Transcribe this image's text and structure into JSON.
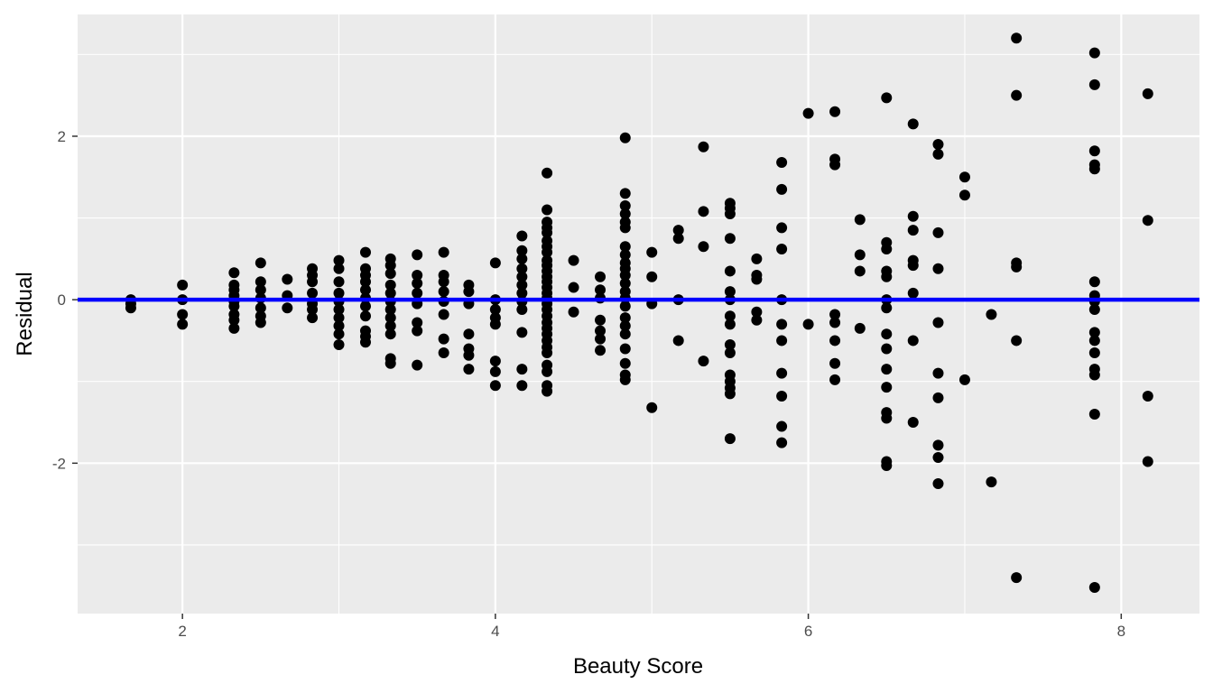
{
  "chart_data": {
    "type": "scatter",
    "title": "",
    "xlabel": "Beauty Score",
    "ylabel": "Residual",
    "xlim": [
      1.33,
      8.5
    ],
    "ylim": [
      -3.84,
      3.49
    ],
    "x_ticks": [
      2,
      4,
      6,
      8
    ],
    "y_ticks": [
      -2,
      0,
      2
    ],
    "x_tick_labels": [
      "2",
      "4",
      "6",
      "8"
    ],
    "y_tick_labels": [
      "-2",
      "0",
      "2"
    ],
    "grid": true,
    "reference_line": {
      "y": 0,
      "color": "#0000ff"
    },
    "colors": {
      "panel": "#ebebeb",
      "grid": "#ffffff",
      "points": "#000000"
    },
    "points": [
      {
        "x": 1.67,
        "y": 0.0
      },
      {
        "x": 1.67,
        "y": -0.05
      },
      {
        "x": 1.67,
        "y": -0.1
      },
      {
        "x": 2.0,
        "y": 0.18
      },
      {
        "x": 2.0,
        "y": 0.0
      },
      {
        "x": 2.0,
        "y": -0.18
      },
      {
        "x": 2.0,
        "y": -0.3
      },
      {
        "x": 2.33,
        "y": 0.33
      },
      {
        "x": 2.33,
        "y": 0.18
      },
      {
        "x": 2.33,
        "y": 0.12
      },
      {
        "x": 2.33,
        "y": 0.05
      },
      {
        "x": 2.33,
        "y": -0.02
      },
      {
        "x": 2.33,
        "y": -0.08
      },
      {
        "x": 2.33,
        "y": -0.18
      },
      {
        "x": 2.33,
        "y": -0.25
      },
      {
        "x": 2.33,
        "y": -0.35
      },
      {
        "x": 2.5,
        "y": 0.45
      },
      {
        "x": 2.5,
        "y": 0.22
      },
      {
        "x": 2.5,
        "y": 0.12
      },
      {
        "x": 2.5,
        "y": 0.02
      },
      {
        "x": 2.5,
        "y": -0.1
      },
      {
        "x": 2.5,
        "y": -0.2
      },
      {
        "x": 2.5,
        "y": -0.28
      },
      {
        "x": 2.67,
        "y": 0.25
      },
      {
        "x": 2.67,
        "y": 0.05
      },
      {
        "x": 2.67,
        "y": -0.1
      },
      {
        "x": 2.83,
        "y": 0.38
      },
      {
        "x": 2.83,
        "y": 0.3
      },
      {
        "x": 2.83,
        "y": 0.22
      },
      {
        "x": 2.83,
        "y": 0.08
      },
      {
        "x": 2.83,
        "y": -0.05
      },
      {
        "x": 2.83,
        "y": -0.12
      },
      {
        "x": 2.83,
        "y": -0.22
      },
      {
        "x": 3.0,
        "y": 0.48
      },
      {
        "x": 3.0,
        "y": 0.38
      },
      {
        "x": 3.0,
        "y": 0.22
      },
      {
        "x": 3.0,
        "y": 0.08
      },
      {
        "x": 3.0,
        "y": -0.02
      },
      {
        "x": 3.0,
        "y": -0.12
      },
      {
        "x": 3.0,
        "y": -0.22
      },
      {
        "x": 3.0,
        "y": -0.32
      },
      {
        "x": 3.0,
        "y": -0.42
      },
      {
        "x": 3.0,
        "y": -0.55
      },
      {
        "x": 3.17,
        "y": 0.58
      },
      {
        "x": 3.17,
        "y": 0.38
      },
      {
        "x": 3.17,
        "y": 0.3
      },
      {
        "x": 3.17,
        "y": 0.22
      },
      {
        "x": 3.17,
        "y": 0.12
      },
      {
        "x": 3.17,
        "y": 0.02
      },
      {
        "x": 3.17,
        "y": -0.08
      },
      {
        "x": 3.17,
        "y": -0.2
      },
      {
        "x": 3.17,
        "y": -0.38
      },
      {
        "x": 3.17,
        "y": -0.45
      },
      {
        "x": 3.17,
        "y": -0.52
      },
      {
        "x": 3.33,
        "y": 0.5
      },
      {
        "x": 3.33,
        "y": 0.42
      },
      {
        "x": 3.33,
        "y": 0.32
      },
      {
        "x": 3.33,
        "y": 0.18
      },
      {
        "x": 3.33,
        "y": 0.08
      },
      {
        "x": 3.33,
        "y": -0.02
      },
      {
        "x": 3.33,
        "y": -0.12
      },
      {
        "x": 3.33,
        "y": -0.22
      },
      {
        "x": 3.33,
        "y": -0.32
      },
      {
        "x": 3.33,
        "y": -0.42
      },
      {
        "x": 3.33,
        "y": -0.72
      },
      {
        "x": 3.33,
        "y": -0.78
      },
      {
        "x": 3.5,
        "y": 0.55
      },
      {
        "x": 3.5,
        "y": 0.3
      },
      {
        "x": 3.5,
        "y": 0.2
      },
      {
        "x": 3.5,
        "y": 0.08
      },
      {
        "x": 3.5,
        "y": -0.05
      },
      {
        "x": 3.5,
        "y": -0.28
      },
      {
        "x": 3.5,
        "y": -0.38
      },
      {
        "x": 3.5,
        "y": -0.8
      },
      {
        "x": 3.67,
        "y": 0.58
      },
      {
        "x": 3.67,
        "y": 0.3
      },
      {
        "x": 3.67,
        "y": 0.22
      },
      {
        "x": 3.67,
        "y": 0.1
      },
      {
        "x": 3.67,
        "y": -0.02
      },
      {
        "x": 3.67,
        "y": -0.18
      },
      {
        "x": 3.67,
        "y": -0.48
      },
      {
        "x": 3.67,
        "y": -0.65
      },
      {
        "x": 3.83,
        "y": 0.18
      },
      {
        "x": 3.83,
        "y": 0.1
      },
      {
        "x": 3.83,
        "y": -0.05
      },
      {
        "x": 3.83,
        "y": -0.42
      },
      {
        "x": 3.83,
        "y": -0.6
      },
      {
        "x": 3.83,
        "y": -0.68
      },
      {
        "x": 3.83,
        "y": -0.85
      },
      {
        "x": 4.0,
        "y": 0.45
      },
      {
        "x": 4.0,
        "y": 0.0
      },
      {
        "x": 4.0,
        "y": -0.12
      },
      {
        "x": 4.0,
        "y": -0.22
      },
      {
        "x": 4.0,
        "y": -0.3
      },
      {
        "x": 4.0,
        "y": -0.75
      },
      {
        "x": 4.0,
        "y": -0.88
      },
      {
        "x": 4.0,
        "y": -1.05
      },
      {
        "x": 4.17,
        "y": 0.78
      },
      {
        "x": 4.17,
        "y": 0.6
      },
      {
        "x": 4.17,
        "y": 0.5
      },
      {
        "x": 4.17,
        "y": 0.38
      },
      {
        "x": 4.17,
        "y": 0.28
      },
      {
        "x": 4.17,
        "y": 0.18
      },
      {
        "x": 4.17,
        "y": 0.08
      },
      {
        "x": 4.17,
        "y": -0.02
      },
      {
        "x": 4.17,
        "y": -0.12
      },
      {
        "x": 4.17,
        "y": -0.4
      },
      {
        "x": 4.17,
        "y": -0.85
      },
      {
        "x": 4.17,
        "y": -1.05
      },
      {
        "x": 4.33,
        "y": 1.55
      },
      {
        "x": 4.33,
        "y": 1.1
      },
      {
        "x": 4.33,
        "y": 0.95
      },
      {
        "x": 4.33,
        "y": 0.88
      },
      {
        "x": 4.33,
        "y": 0.82
      },
      {
        "x": 4.33,
        "y": 0.72
      },
      {
        "x": 4.33,
        "y": 0.65
      },
      {
        "x": 4.33,
        "y": 0.58
      },
      {
        "x": 4.33,
        "y": 0.48
      },
      {
        "x": 4.33,
        "y": 0.42
      },
      {
        "x": 4.33,
        "y": 0.35
      },
      {
        "x": 4.33,
        "y": 0.28
      },
      {
        "x": 4.33,
        "y": 0.22
      },
      {
        "x": 4.33,
        "y": 0.15
      },
      {
        "x": 4.33,
        "y": 0.08
      },
      {
        "x": 4.33,
        "y": 0.02
      },
      {
        "x": 4.33,
        "y": -0.05
      },
      {
        "x": 4.33,
        "y": -0.12
      },
      {
        "x": 4.33,
        "y": -0.2
      },
      {
        "x": 4.33,
        "y": -0.28
      },
      {
        "x": 4.33,
        "y": -0.35
      },
      {
        "x": 4.33,
        "y": -0.42
      },
      {
        "x": 4.33,
        "y": -0.5
      },
      {
        "x": 4.33,
        "y": -0.58
      },
      {
        "x": 4.33,
        "y": -0.65
      },
      {
        "x": 4.33,
        "y": -0.8
      },
      {
        "x": 4.33,
        "y": -0.88
      },
      {
        "x": 4.33,
        "y": -1.05
      },
      {
        "x": 4.33,
        "y": -1.12
      },
      {
        "x": 4.5,
        "y": 0.48
      },
      {
        "x": 4.5,
        "y": 0.15
      },
      {
        "x": 4.5,
        "y": -0.15
      },
      {
        "x": 4.67,
        "y": 0.28
      },
      {
        "x": 4.67,
        "y": 0.12
      },
      {
        "x": 4.67,
        "y": 0.02
      },
      {
        "x": 4.67,
        "y": -0.25
      },
      {
        "x": 4.67,
        "y": -0.38
      },
      {
        "x": 4.67,
        "y": -0.48
      },
      {
        "x": 4.67,
        "y": -0.62
      },
      {
        "x": 4.83,
        "y": 1.98
      },
      {
        "x": 4.83,
        "y": 1.3
      },
      {
        "x": 4.83,
        "y": 1.15
      },
      {
        "x": 4.83,
        "y": 1.05
      },
      {
        "x": 4.83,
        "y": 0.95
      },
      {
        "x": 4.83,
        "y": 0.88
      },
      {
        "x": 4.83,
        "y": 0.65
      },
      {
        "x": 4.83,
        "y": 0.55
      },
      {
        "x": 4.83,
        "y": 0.45
      },
      {
        "x": 4.83,
        "y": 0.38
      },
      {
        "x": 4.83,
        "y": 0.3
      },
      {
        "x": 4.83,
        "y": 0.2
      },
      {
        "x": 4.83,
        "y": 0.1
      },
      {
        "x": 4.83,
        "y": 0.02
      },
      {
        "x": 4.83,
        "y": -0.08
      },
      {
        "x": 4.83,
        "y": -0.22
      },
      {
        "x": 4.83,
        "y": -0.32
      },
      {
        "x": 4.83,
        "y": -0.42
      },
      {
        "x": 4.83,
        "y": -0.6
      },
      {
        "x": 4.83,
        "y": -0.78
      },
      {
        "x": 4.83,
        "y": -0.92
      },
      {
        "x": 4.83,
        "y": -0.98
      },
      {
        "x": 5.0,
        "y": 0.58
      },
      {
        "x": 5.0,
        "y": 0.28
      },
      {
        "x": 5.0,
        "y": -0.05
      },
      {
        "x": 5.0,
        "y": -1.32
      },
      {
        "x": 5.17,
        "y": 0.85
      },
      {
        "x": 5.17,
        "y": 0.75
      },
      {
        "x": 5.17,
        "y": 0.0
      },
      {
        "x": 5.17,
        "y": -0.5
      },
      {
        "x": 5.33,
        "y": 1.87
      },
      {
        "x": 5.33,
        "y": 1.08
      },
      {
        "x": 5.33,
        "y": 0.65
      },
      {
        "x": 5.33,
        "y": -0.75
      },
      {
        "x": 5.5,
        "y": 1.18
      },
      {
        "x": 5.5,
        "y": 1.12
      },
      {
        "x": 5.5,
        "y": 1.05
      },
      {
        "x": 5.5,
        "y": 0.75
      },
      {
        "x": 5.5,
        "y": 0.35
      },
      {
        "x": 5.5,
        "y": 0.1
      },
      {
        "x": 5.5,
        "y": 0.0
      },
      {
        "x": 5.5,
        "y": -0.2
      },
      {
        "x": 5.5,
        "y": -0.3
      },
      {
        "x": 5.5,
        "y": -0.55
      },
      {
        "x": 5.5,
        "y": -0.65
      },
      {
        "x": 5.5,
        "y": -0.92
      },
      {
        "x": 5.5,
        "y": -1.0
      },
      {
        "x": 5.5,
        "y": -1.08
      },
      {
        "x": 5.5,
        "y": -1.15
      },
      {
        "x": 5.5,
        "y": -1.7
      },
      {
        "x": 5.67,
        "y": 0.5
      },
      {
        "x": 5.67,
        "y": 0.3
      },
      {
        "x": 5.67,
        "y": 0.25
      },
      {
        "x": 5.67,
        "y": -0.15
      },
      {
        "x": 5.67,
        "y": -0.25
      },
      {
        "x": 5.83,
        "y": 1.68
      },
      {
        "x": 5.83,
        "y": 1.35
      },
      {
        "x": 5.83,
        "y": 0.88
      },
      {
        "x": 5.83,
        "y": 0.62
      },
      {
        "x": 5.83,
        "y": 0.0
      },
      {
        "x": 5.83,
        "y": -0.3
      },
      {
        "x": 5.83,
        "y": -0.5
      },
      {
        "x": 5.83,
        "y": -0.9
      },
      {
        "x": 5.83,
        "y": -1.18
      },
      {
        "x": 5.83,
        "y": -1.55
      },
      {
        "x": 5.83,
        "y": -1.75
      },
      {
        "x": 6.0,
        "y": 2.28
      },
      {
        "x": 6.0,
        "y": -0.3
      },
      {
        "x": 6.17,
        "y": 2.3
      },
      {
        "x": 6.17,
        "y": 1.72
      },
      {
        "x": 6.17,
        "y": 1.65
      },
      {
        "x": 6.17,
        "y": -0.18
      },
      {
        "x": 6.17,
        "y": -0.28
      },
      {
        "x": 6.17,
        "y": -0.5
      },
      {
        "x": 6.17,
        "y": -0.78
      },
      {
        "x": 6.17,
        "y": -0.98
      },
      {
        "x": 6.33,
        "y": 0.98
      },
      {
        "x": 6.33,
        "y": 0.55
      },
      {
        "x": 6.33,
        "y": 0.35
      },
      {
        "x": 6.33,
        "y": -0.35
      },
      {
        "x": 6.5,
        "y": 2.47
      },
      {
        "x": 6.5,
        "y": 0.7
      },
      {
        "x": 6.5,
        "y": 0.62
      },
      {
        "x": 6.5,
        "y": 0.35
      },
      {
        "x": 6.5,
        "y": 0.28
      },
      {
        "x": 6.5,
        "y": 0.0
      },
      {
        "x": 6.5,
        "y": -0.1
      },
      {
        "x": 6.5,
        "y": -0.42
      },
      {
        "x": 6.5,
        "y": -0.6
      },
      {
        "x": 6.5,
        "y": -0.85
      },
      {
        "x": 6.5,
        "y": -1.07
      },
      {
        "x": 6.5,
        "y": -1.38
      },
      {
        "x": 6.5,
        "y": -1.45
      },
      {
        "x": 6.5,
        "y": -1.98
      },
      {
        "x": 6.5,
        "y": -2.03
      },
      {
        "x": 6.67,
        "y": 2.15
      },
      {
        "x": 6.67,
        "y": 1.02
      },
      {
        "x": 6.67,
        "y": 0.85
      },
      {
        "x": 6.67,
        "y": 0.48
      },
      {
        "x": 6.67,
        "y": 0.42
      },
      {
        "x": 6.67,
        "y": 0.08
      },
      {
        "x": 6.67,
        "y": -0.5
      },
      {
        "x": 6.67,
        "y": -1.5
      },
      {
        "x": 6.83,
        "y": 1.9
      },
      {
        "x": 6.83,
        "y": 1.78
      },
      {
        "x": 6.83,
        "y": 0.82
      },
      {
        "x": 6.83,
        "y": 0.38
      },
      {
        "x": 6.83,
        "y": -0.28
      },
      {
        "x": 6.83,
        "y": -0.9
      },
      {
        "x": 6.83,
        "y": -1.2
      },
      {
        "x": 6.83,
        "y": -1.78
      },
      {
        "x": 6.83,
        "y": -1.93
      },
      {
        "x": 6.83,
        "y": -2.25
      },
      {
        "x": 7.0,
        "y": 1.5
      },
      {
        "x": 7.0,
        "y": 1.28
      },
      {
        "x": 7.0,
        "y": -0.98
      },
      {
        "x": 7.17,
        "y": -0.18
      },
      {
        "x": 7.17,
        "y": -2.23
      },
      {
        "x": 7.33,
        "y": 3.2
      },
      {
        "x": 7.33,
        "y": 2.5
      },
      {
        "x": 7.33,
        "y": 0.45
      },
      {
        "x": 7.33,
        "y": 0.4
      },
      {
        "x": 7.33,
        "y": -0.5
      },
      {
        "x": 7.33,
        "y": -3.4
      },
      {
        "x": 7.83,
        "y": 3.02
      },
      {
        "x": 7.83,
        "y": 2.63
      },
      {
        "x": 7.83,
        "y": 1.82
      },
      {
        "x": 7.83,
        "y": 1.65
      },
      {
        "x": 7.83,
        "y": 1.6
      },
      {
        "x": 7.83,
        "y": 0.22
      },
      {
        "x": 7.83,
        "y": 0.05
      },
      {
        "x": 7.83,
        "y": -0.02
      },
      {
        "x": 7.83,
        "y": -0.12
      },
      {
        "x": 7.83,
        "y": -0.4
      },
      {
        "x": 7.83,
        "y": -0.5
      },
      {
        "x": 7.83,
        "y": -0.65
      },
      {
        "x": 7.83,
        "y": -0.85
      },
      {
        "x": 7.83,
        "y": -0.92
      },
      {
        "x": 7.83,
        "y": -1.4
      },
      {
        "x": 7.83,
        "y": -3.52
      },
      {
        "x": 8.17,
        "y": 2.52
      },
      {
        "x": 8.17,
        "y": 0.97
      },
      {
        "x": 8.17,
        "y": -1.18
      },
      {
        "x": 8.17,
        "y": -1.98
      }
    ]
  }
}
